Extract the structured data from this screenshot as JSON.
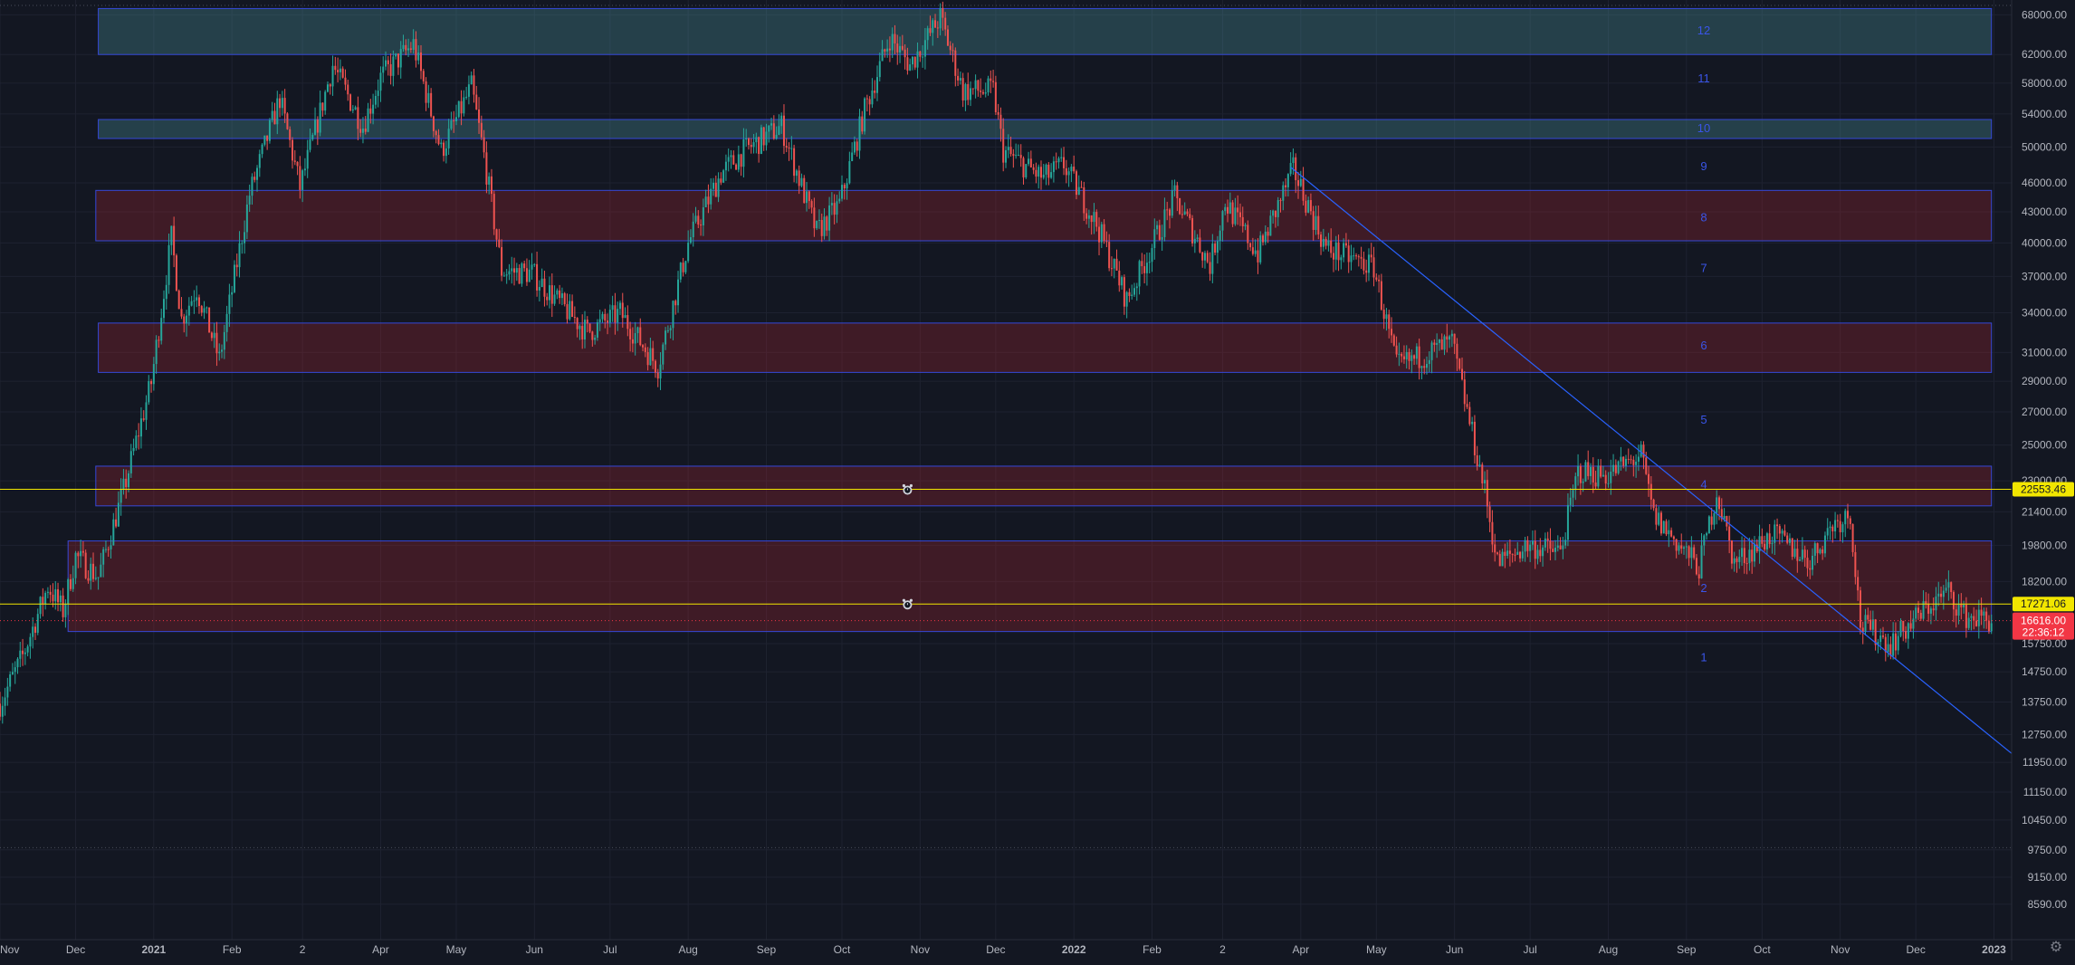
{
  "chart_data": {
    "type": "candlestick",
    "symbol_hint": "",
    "log_scale": true,
    "grid": true,
    "ylim": [
      8200,
      69500
    ],
    "xlim": [
      "2020-11-01",
      "2023-01-08"
    ],
    "y_ticks": [
      "68000.00",
      "62000.00",
      "58000.00",
      "54000.00",
      "50000.00",
      "46000.00",
      "43000.00",
      "40000.00",
      "37000.00",
      "34000.00",
      "31000.00",
      "29000.00",
      "27000.00",
      "25000.00",
      "23000.00",
      "21400.00",
      "19800.00",
      "18200.00",
      "15750.00",
      "14750.00",
      "13750.00",
      "12750.00",
      "11950.00",
      "11150.00",
      "10450.00",
      "9750.00",
      "9150.00",
      "8590.00"
    ],
    "x_ticks": [
      {
        "label": "Nov",
        "date": "2020-11-01",
        "bold": false
      },
      {
        "label": "Dec",
        "date": "2020-12-01",
        "bold": false
      },
      {
        "label": "2021",
        "date": "2021-01-01",
        "bold": true
      },
      {
        "label": "Feb",
        "date": "2021-02-01",
        "bold": false
      },
      {
        "label": "2",
        "date": "2021-03-01",
        "bold": false
      },
      {
        "label": "Apr",
        "date": "2021-04-01",
        "bold": false
      },
      {
        "label": "May",
        "date": "2021-05-01",
        "bold": false
      },
      {
        "label": "Jun",
        "date": "2021-06-01",
        "bold": false
      },
      {
        "label": "Jul",
        "date": "2021-07-01",
        "bold": false
      },
      {
        "label": "Aug",
        "date": "2021-08-01",
        "bold": false
      },
      {
        "label": "Sep",
        "date": "2021-09-01",
        "bold": false
      },
      {
        "label": "Oct",
        "date": "2021-10-01",
        "bold": false
      },
      {
        "label": "Nov",
        "date": "2021-11-01",
        "bold": false
      },
      {
        "label": "Dec",
        "date": "2021-12-01",
        "bold": false
      },
      {
        "label": "2022",
        "date": "2022-01-01",
        "bold": true
      },
      {
        "label": "Feb",
        "date": "2022-02-01",
        "bold": false
      },
      {
        "label": "2",
        "date": "2022-03-01",
        "bold": false
      },
      {
        "label": "Apr",
        "date": "2022-04-01",
        "bold": false
      },
      {
        "label": "May",
        "date": "2022-05-01",
        "bold": false
      },
      {
        "label": "Jun",
        "date": "2022-06-01",
        "bold": false
      },
      {
        "label": "Jul",
        "date": "2022-07-01",
        "bold": false
      },
      {
        "label": "Aug",
        "date": "2022-08-01",
        "bold": false
      },
      {
        "label": "Sep",
        "date": "2022-09-01",
        "bold": false
      },
      {
        "label": "Oct",
        "date": "2022-10-01",
        "bold": false
      },
      {
        "label": "Nov",
        "date": "2022-11-01",
        "bold": false
      },
      {
        "label": "Dec",
        "date": "2022-12-01",
        "bold": false
      },
      {
        "label": "2023",
        "date": "2023-01-01",
        "bold": true
      }
    ],
    "price_path": [
      [
        "2020-11-01",
        13700
      ],
      [
        "2020-11-10",
        15300
      ],
      [
        "2020-11-20",
        18000
      ],
      [
        "2020-11-26",
        17000
      ],
      [
        "2020-12-01",
        19300
      ],
      [
        "2020-12-10",
        18400
      ],
      [
        "2020-12-20",
        22500
      ],
      [
        "2020-12-31",
        28900
      ],
      [
        "2021-01-08",
        40500
      ],
      [
        "2021-01-12",
        33500
      ],
      [
        "2021-01-18",
        36000
      ],
      [
        "2021-01-27",
        30500
      ],
      [
        "2021-02-08",
        44800
      ],
      [
        "2021-02-20",
        56000
      ],
      [
        "2021-02-28",
        45500
      ],
      [
        "2021-03-13",
        60500
      ],
      [
        "2021-03-25",
        52500
      ],
      [
        "2021-04-01",
        58800
      ],
      [
        "2021-04-14",
        63500
      ],
      [
        "2021-04-25",
        49500
      ],
      [
        "2021-05-07",
        57500
      ],
      [
        "2021-05-12",
        49000
      ],
      [
        "2021-05-19",
        37500
      ],
      [
        "2021-05-31",
        37300
      ],
      [
        "2021-06-10",
        35000
      ],
      [
        "2021-06-22",
        32500
      ],
      [
        "2021-07-05",
        34000
      ],
      [
        "2021-07-20",
        30000
      ],
      [
        "2021-08-01",
        40000
      ],
      [
        "2021-08-14",
        47000
      ],
      [
        "2021-08-23",
        49500
      ],
      [
        "2021-09-07",
        52500
      ],
      [
        "2021-09-21",
        41000
      ],
      [
        "2021-09-30",
        43800
      ],
      [
        "2021-10-10",
        54500
      ],
      [
        "2021-10-20",
        64500
      ],
      [
        "2021-10-28",
        60500
      ],
      [
        "2021-11-09",
        67600
      ],
      [
        "2021-11-18",
        57000
      ],
      [
        "2021-11-30",
        57000
      ],
      [
        "2021-12-04",
        49500
      ],
      [
        "2021-12-20",
        46500
      ],
      [
        "2021-12-28",
        48000
      ],
      [
        "2022-01-10",
        41800
      ],
      [
        "2022-01-22",
        35000
      ],
      [
        "2022-02-10",
        44500
      ],
      [
        "2022-02-24",
        38000
      ],
      [
        "2022-03-02",
        44000
      ],
      [
        "2022-03-15",
        39000
      ],
      [
        "2022-03-29",
        47500
      ],
      [
        "2022-04-11",
        39500
      ],
      [
        "2022-04-30",
        37800
      ],
      [
        "2022-05-09",
        30000
      ],
      [
        "2022-05-31",
        31700
      ],
      [
        "2022-06-13",
        22500
      ],
      [
        "2022-06-18",
        19000
      ],
      [
        "2022-06-30",
        19800
      ],
      [
        "2022-07-13",
        19500
      ],
      [
        "2022-07-20",
        23500
      ],
      [
        "2022-07-31",
        23300
      ],
      [
        "2022-08-14",
        24400
      ],
      [
        "2022-08-19",
        21200
      ],
      [
        "2022-09-06",
        18800
      ],
      [
        "2022-09-13",
        22400
      ],
      [
        "2022-09-20",
        19000
      ],
      [
        "2022-10-05",
        20300
      ],
      [
        "2022-10-20",
        19100
      ],
      [
        "2022-10-29",
        20800
      ],
      [
        "2022-11-05",
        21300
      ],
      [
        "2022-11-09",
        16500
      ],
      [
        "2022-11-21",
        15750
      ],
      [
        "2022-12-05",
        17100
      ],
      [
        "2022-12-14",
        17800
      ],
      [
        "2022-12-20",
        16800
      ],
      [
        "2022-12-31",
        16616
      ]
    ],
    "zones": [
      {
        "label": "12",
        "low": 62000,
        "high": 69000,
        "color": "teal",
        "from": "2020-12-10",
        "to": "2022-12-31"
      },
      {
        "label": "10",
        "low": 51000,
        "high": 53300,
        "color": "teal",
        "from": "2020-12-10",
        "to": "2022-12-31"
      },
      {
        "label": "8",
        "low": 40200,
        "high": 45200,
        "color": "red",
        "from": "2020-12-09",
        "to": "2022-12-31"
      },
      {
        "label": "6",
        "low": 29600,
        "high": 33200,
        "color": "red",
        "from": "2020-12-10",
        "to": "2022-12-31"
      },
      {
        "label": "4",
        "low": 21700,
        "high": 23800,
        "color": "red",
        "from": "2020-12-09",
        "to": "2022-12-31"
      },
      {
        "label": "2",
        "low": 16200,
        "high": 20000,
        "color": "red",
        "from": "2020-11-28",
        "to": "2022-12-31"
      }
    ],
    "level_labels": [
      {
        "label": "12",
        "price": 65500
      },
      {
        "label": "11",
        "price": 58600
      },
      {
        "label": "10",
        "price": 52200
      },
      {
        "label": "9",
        "price": 47800
      },
      {
        "label": "8",
        "price": 42400
      },
      {
        "label": "7",
        "price": 37700
      },
      {
        "label": "6",
        "price": 31500
      },
      {
        "label": "5",
        "price": 26500
      },
      {
        "label": "4",
        "price": 22800
      },
      {
        "label": "2",
        "price": 17900
      },
      {
        "label": "1",
        "price": 15250
      }
    ],
    "trendline": {
      "from": [
        "2022-03-28",
        47700
      ],
      "to": [
        "2023-01-08",
        12200
      ]
    },
    "alerts": [
      {
        "price": 22553.46,
        "date": "2021-10-27"
      },
      {
        "price": 17271.06,
        "date": "2021-10-27"
      }
    ],
    "horizontal_lines": [
      {
        "price": 22553.46,
        "label": "22553.46",
        "color": "#f2e600"
      },
      {
        "price": 17271.06,
        "label": "17271.06",
        "color": "#f2e600"
      }
    ],
    "dotted_lines": [
      69500,
      9800
    ],
    "last_price": {
      "value": 16616,
      "label": "16616.00",
      "countdown": "22:36:12"
    }
  },
  "colors": {
    "background": "#131722",
    "grid": "#1e2230",
    "axis_text": "#b2b5be",
    "up": "#26a69a",
    "down": "#ef5350",
    "zone_red_fill": "rgba(178,40,50,0.28)",
    "zone_teal_fill": "rgba(80,160,170,0.30)",
    "zone_border": "#3548d8",
    "level_text": "#3a55e8",
    "trendline": "#2962ff",
    "price_line": "#f2e600",
    "last_price": "#f23645"
  },
  "icons": {
    "alert": "alarm-clock-icon",
    "settings": "gear-icon"
  }
}
